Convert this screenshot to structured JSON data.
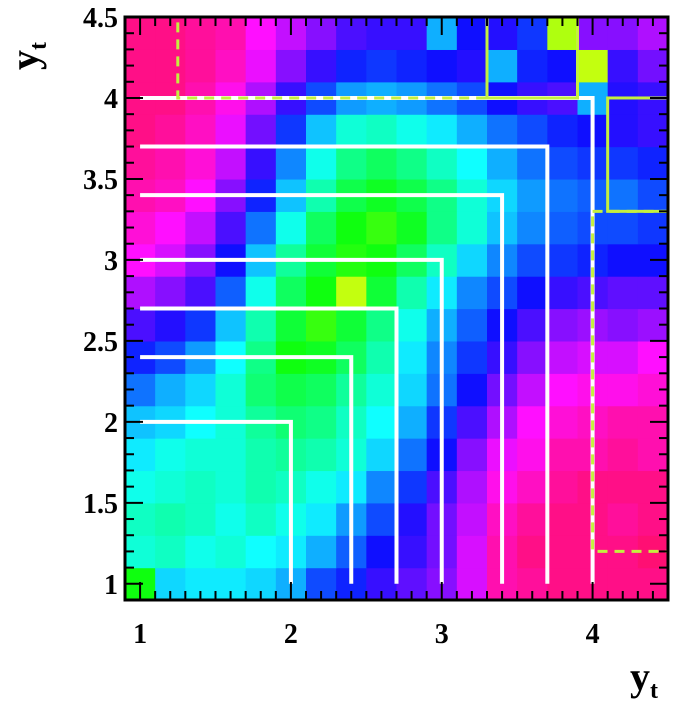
{
  "chart_data": {
    "type": "heatmap",
    "title": "",
    "xlabel": "y",
    "xlabel_sub": "t",
    "ylabel": "y",
    "ylabel_sub": "t",
    "xlim": [
      0.9,
      4.5
    ],
    "ylim": [
      0.9,
      4.5
    ],
    "grid": false,
    "legend": "none",
    "x_ticks": [
      {
        "value": 1,
        "label": "1"
      },
      {
        "value": 2,
        "label": "2"
      },
      {
        "value": 3,
        "label": "3"
      },
      {
        "value": 4,
        "label": "4"
      }
    ],
    "y_ticks": [
      {
        "value": 1,
        "label": "1"
      },
      {
        "value": 1.5,
        "label": "1.5"
      },
      {
        "value": 2,
        "label": "2"
      },
      {
        "value": 2.5,
        "label": "2.5"
      },
      {
        "value": 3,
        "label": "3"
      },
      {
        "value": 3.5,
        "label": "3.5"
      },
      {
        "value": 4,
        "label": "4"
      },
      {
        "value": 4.5,
        "label": "4.5"
      }
    ],
    "grid_cells": {
      "nx": 18,
      "ny": 18,
      "cell_size": 0.2
    },
    "heatmap_hues": [
      [
        120,
        190,
        185,
        185,
        190,
        200,
        225,
        235,
        250,
        260,
        270,
        290,
        320,
        325,
        330,
        330,
        330,
        330
      ],
      [
        170,
        165,
        175,
        170,
        180,
        185,
        200,
        220,
        240,
        250,
        265,
        290,
        320,
        330,
        330,
        330,
        330,
        335
      ],
      [
        165,
        160,
        165,
        175,
        165,
        175,
        185,
        205,
        225,
        245,
        265,
        285,
        315,
        325,
        330,
        330,
        325,
        330
      ],
      [
        175,
        170,
        165,
        170,
        160,
        165,
        175,
        185,
        210,
        230,
        255,
        280,
        305,
        315,
        325,
        330,
        330,
        330
      ],
      [
        185,
        175,
        170,
        170,
        160,
        155,
        160,
        170,
        190,
        215,
        240,
        270,
        295,
        305,
        320,
        320,
        325,
        320
      ],
      [
        195,
        190,
        180,
        170,
        155,
        145,
        150,
        165,
        180,
        200,
        230,
        255,
        280,
        300,
        310,
        315,
        320,
        320
      ],
      [
        215,
        200,
        190,
        170,
        145,
        135,
        140,
        155,
        170,
        190,
        215,
        240,
        265,
        285,
        300,
        305,
        305,
        310
      ],
      [
        235,
        225,
        205,
        180,
        150,
        120,
        125,
        140,
        160,
        185,
        210,
        230,
        250,
        270,
        285,
        290,
        290,
        300
      ],
      [
        255,
        245,
        230,
        195,
        160,
        130,
        110,
        130,
        150,
        175,
        200,
        220,
        240,
        255,
        270,
        275,
        270,
        275
      ],
      [
        280,
        270,
        255,
        220,
        175,
        140,
        120,
        75,
        130,
        160,
        185,
        210,
        225,
        240,
        250,
        255,
        260,
        260
      ],
      [
        300,
        290,
        270,
        240,
        195,
        155,
        130,
        115,
        120,
        140,
        165,
        190,
        210,
        225,
        230,
        235,
        240,
        240
      ],
      [
        310,
        300,
        285,
        255,
        215,
        175,
        140,
        120,
        110,
        125,
        150,
        170,
        195,
        210,
        220,
        225,
        225,
        230
      ],
      [
        320,
        315,
        300,
        270,
        235,
        195,
        160,
        135,
        125,
        135,
        150,
        170,
        190,
        205,
        215,
        220,
        215,
        225
      ],
      [
        325,
        320,
        310,
        285,
        250,
        210,
        175,
        150,
        140,
        150,
        165,
        180,
        200,
        215,
        225,
        230,
        230,
        235
      ],
      [
        330,
        325,
        315,
        295,
        265,
        230,
        195,
        170,
        165,
        175,
        185,
        200,
        215,
        225,
        235,
        240,
        245,
        250
      ],
      [
        330,
        330,
        320,
        305,
        280,
        250,
        225,
        205,
        200,
        205,
        215,
        225,
        240,
        250,
        255,
        200,
        245,
        250
      ],
      [
        330,
        330,
        325,
        315,
        295,
        270,
        250,
        235,
        230,
        235,
        240,
        245,
        200,
        235,
        240,
        75,
        250,
        265
      ],
      [
        330,
        330,
        325,
        320,
        300,
        285,
        270,
        255,
        250,
        250,
        200,
        240,
        245,
        230,
        80,
        270,
        270,
        280
      ]
    ],
    "boundary_curves": [
      {
        "corner": 2.0
      },
      {
        "corner": 2.4
      },
      {
        "corner": 2.7
      },
      {
        "corner": 3.0
      },
      {
        "corner": 3.4
      },
      {
        "corner": 3.7
      },
      {
        "corner": 4.0
      }
    ],
    "highlight_boxes": [
      {
        "x0": 1.25,
        "x1": 3.3,
        "y0": 4.0,
        "y1": 4.5,
        "style": "dashed"
      },
      {
        "x0": 3.3,
        "x1": 3.9,
        "y0": 4.0,
        "y1": 4.5,
        "style": "solid"
      },
      {
        "x0": 4.1,
        "x1": 4.5,
        "y0": 3.3,
        "y1": 4.0,
        "style": "solid"
      },
      {
        "x0": 4.0,
        "x1": 4.5,
        "y0": 1.2,
        "y1": 3.3,
        "style": "dashed"
      }
    ],
    "colors": {
      "boundary": "#ffffff",
      "highlight": "#c4ef3f",
      "frame": "#000000"
    }
  }
}
